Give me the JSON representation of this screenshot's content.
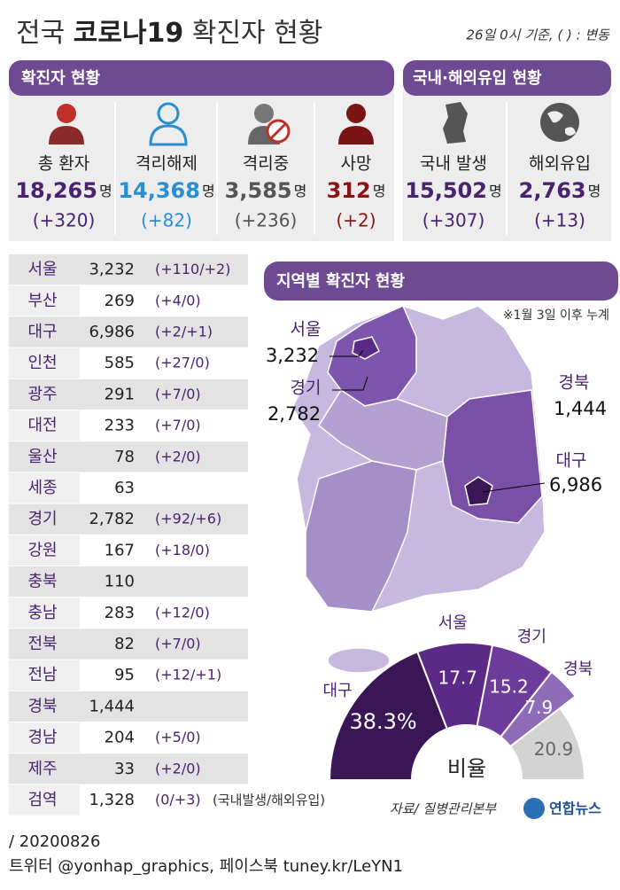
{
  "header": {
    "title_prefix": "전국",
    "title_bold": "코로나19",
    "title_suffix": "확진자 현황",
    "note": "26일 0시 기준, ( ) : 변동"
  },
  "confirmed": {
    "title": "확진자 현황",
    "items": [
      {
        "label": "총 환자",
        "value": "18,265",
        "unit": "명",
        "change": "(+320)"
      },
      {
        "label": "격리해제",
        "value": "14,368",
        "unit": "명",
        "change": "(+82)"
      },
      {
        "label": "격리중",
        "value": "3,585",
        "unit": "명",
        "change": "(+236)"
      },
      {
        "label": "사망",
        "value": "312",
        "unit": "명",
        "change": "(+2)"
      }
    ]
  },
  "origin": {
    "title": "국내·해외유입 현황",
    "items": [
      {
        "label": "국내 발생",
        "value": "15,502",
        "unit": "명",
        "change": "(+307)"
      },
      {
        "label": "해외유입",
        "value": "2,763",
        "unit": "명",
        "change": "(+13)"
      }
    ]
  },
  "regions": {
    "rows": [
      [
        "서울",
        "3,232",
        "(+110/+2)"
      ],
      [
        "부산",
        "269",
        "(+4/0)"
      ],
      [
        "대구",
        "6,986",
        "(+2/+1)"
      ],
      [
        "인천",
        "585",
        "(+27/0)"
      ],
      [
        "광주",
        "291",
        "(+7/0)"
      ],
      [
        "대전",
        "233",
        "(+7/0)"
      ],
      [
        "울산",
        "78",
        "(+2/0)"
      ],
      [
        "세종",
        "63"
      ],
      [
        "경기",
        "2,782",
        "(+92/+6)"
      ],
      [
        "강원",
        "167",
        "(+18/0)"
      ],
      [
        "충북",
        "110"
      ],
      [
        "충남",
        "283",
        "(+12/0)"
      ],
      [
        "전북",
        "82",
        "(+7/0)"
      ],
      [
        "전남",
        "95",
        "(+12/+1)"
      ],
      [
        "경북",
        "1,444"
      ],
      [
        "경남",
        "204",
        "(+5/0)"
      ],
      [
        "제주",
        "33",
        "(+2/0)"
      ],
      [
        "검역",
        "1,328",
        "(0/+3)"
      ]
    ],
    "note": "(국내발생/해외유입)"
  },
  "map": {
    "title": "지역별 확진자 현황",
    "note": "※1월 3일 이후 누계",
    "labels": [
      {
        "name": "서울",
        "value": "3,232"
      },
      {
        "name": "경기",
        "value": "2,782"
      },
      {
        "name": "경북",
        "value": "1,444"
      },
      {
        "name": "대구",
        "value": "6,986"
      }
    ]
  },
  "chart_data": {
    "type": "pie",
    "center_label": "비율",
    "categories": [
      "대구",
      "서울",
      "경기",
      "경북",
      null
    ],
    "values": [
      38.3,
      17.7,
      15.2,
      7.9,
      20.9
    ],
    "value_labels": [
      "38.3%",
      "17.7",
      "15.2",
      "7.9",
      "20.9"
    ],
    "colors": [
      "#3b1656",
      "#5a2a86",
      "#6c3b9c",
      "#8f6cb8",
      "#d3d3d3"
    ]
  },
  "source": "자료/ 질병관리본부",
  "logo": "연합뉴스",
  "footer": {
    "date": "/ 20200826",
    "sns": "트위터 @yonhap_graphics, 페이스북 tuney.kr/LeYN1"
  }
}
